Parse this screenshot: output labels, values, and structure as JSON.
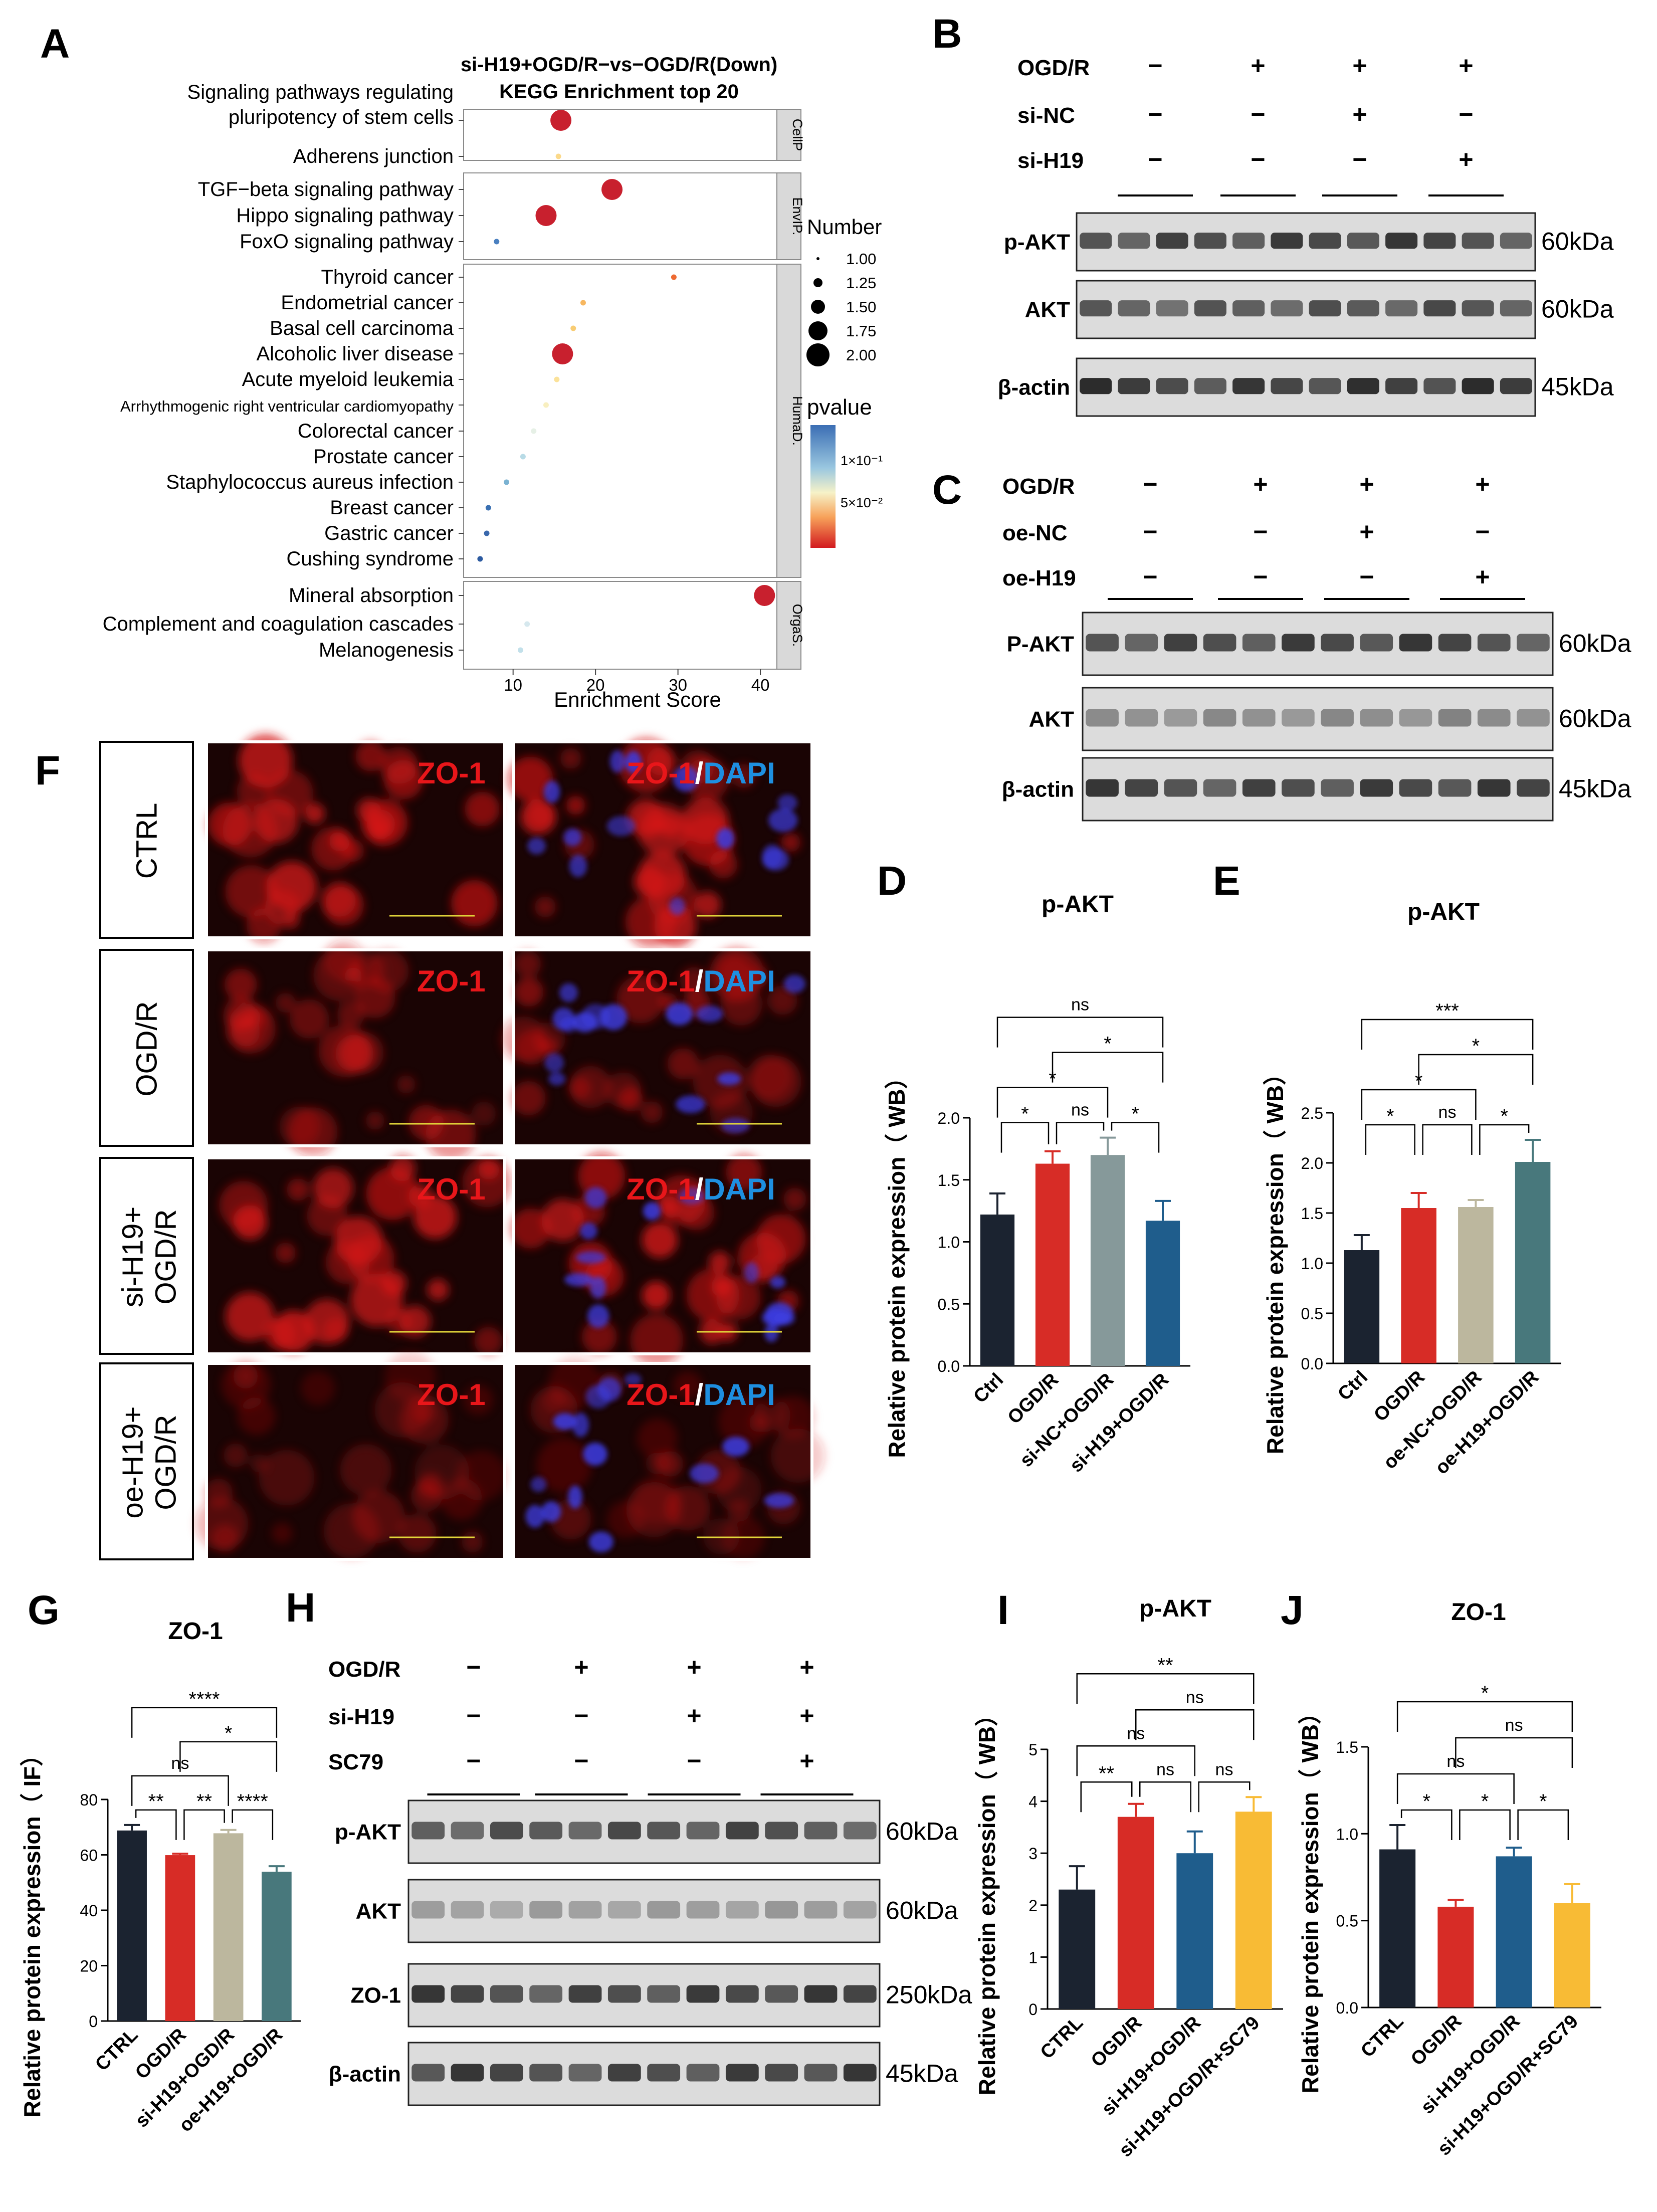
{
  "panel_letters": {
    "A": "A",
    "B": "B",
    "C": "C",
    "D": "D",
    "E": "E",
    "F": "F",
    "G": "G",
    "H": "H",
    "I": "I",
    "J": "J"
  },
  "kegg": {
    "title1": "si-H19+OGD/R−vs−OGD/R(Down)",
    "title2": "KEGG Enrichment top 20",
    "xlabel": "Enrichment Score",
    "xticks": [
      "10",
      "20",
      "30",
      "40"
    ],
    "groups": [
      {
        "name": "CellP",
        "terms": [
          "Signaling pathways regulating|pluripotency of stem cells",
          "Adherens junction"
        ]
      },
      {
        "name": "EnvIP.",
        "terms": [
          "TGF−beta signaling pathway",
          "Hippo signaling pathway",
          "FoxO signaling pathway"
        ]
      },
      {
        "name": "HumaD.",
        "terms": [
          "Thyroid cancer",
          "Endometrial cancer",
          "Basal cell carcinoma",
          "Alcoholic liver disease",
          "Acute myeloid leukemia",
          "Arrhythmogenic right ventricular cardiomyopathy",
          "Colorectal cancer",
          "Prostate cancer",
          "Staphylococcus aureus infection",
          "Breast cancer",
          "Gastric cancer",
          "Cushing syndrome"
        ]
      },
      {
        "name": "OrgaS.",
        "terms": [
          "Mineral absorption",
          "Complement and coagulation cascades",
          "Melanogenesis"
        ]
      }
    ],
    "legend_number_title": "Number",
    "legend_number": [
      "1.00",
      "1.25",
      "1.50",
      "1.75",
      "2.00"
    ],
    "legend_pvalue_title": "pvalue",
    "legend_pvalue_ticks": [
      "1×10⁻¹",
      "5×10⁻²"
    ]
  },
  "wb_B": {
    "conditions": [
      {
        "label": "OGD/R",
        "marks": [
          "−",
          "+",
          "+",
          "+"
        ]
      },
      {
        "label": "si-NC",
        "marks": [
          "−",
          "−",
          "+",
          "−"
        ]
      },
      {
        "label": "si-H19",
        "marks": [
          "−",
          "−",
          "−",
          "+"
        ]
      }
    ],
    "bands": [
      {
        "name": "p-AKT",
        "kda": "60kDa"
      },
      {
        "name": "AKT",
        "kda": "60kDa"
      },
      {
        "name": "β-actin",
        "kda": "45kDa"
      }
    ]
  },
  "wb_C": {
    "conditions": [
      {
        "label": "OGD/R",
        "marks": [
          "−",
          "+",
          "+",
          "+"
        ]
      },
      {
        "label": "oe-NC",
        "marks": [
          "−",
          "−",
          "+",
          "−"
        ]
      },
      {
        "label": "oe-H19",
        "marks": [
          "−",
          "−",
          "−",
          "+"
        ]
      }
    ],
    "bands": [
      {
        "name": "P-AKT",
        "kda": "60kDa"
      },
      {
        "name": "AKT",
        "kda": "60kDa"
      },
      {
        "name": "β-actin",
        "kda": "45kDa"
      }
    ]
  },
  "wb_H": {
    "conditions": [
      {
        "label": "OGD/R",
        "marks": [
          "−",
          "+",
          "+",
          "+"
        ]
      },
      {
        "label": "si-H19",
        "marks": [
          "−",
          "−",
          "+",
          "+"
        ]
      },
      {
        "label": "SC79",
        "marks": [
          "−",
          "−",
          "−",
          "+"
        ]
      }
    ],
    "bands": [
      {
        "name": "p-AKT",
        "kda": "60kDa"
      },
      {
        "name": "AKT",
        "kda": "60kDa"
      },
      {
        "name": "ZO-1",
        "kda": "250kDa"
      },
      {
        "name": "β-actin",
        "kda": "45kDa"
      }
    ]
  },
  "if_F": {
    "rows": [
      "CTRL",
      "OGD/R",
      "si-H19+|OGD/R",
      "oe-H19+|OGD/R"
    ],
    "label_zo1": "ZO-1",
    "label_slash": "/",
    "label_dapi": "DAPI"
  },
  "chart_data": [
    {
      "panel": "D",
      "type": "bar",
      "title": "p-AKT",
      "ylabel": "Relative protein expression（ WB）",
      "ylim": [
        0,
        2.0
      ],
      "yticks": [
        "0.0",
        "0.5",
        "1.0",
        "1.5",
        "2.0"
      ],
      "categories": [
        "Ctrl",
        "OGD/R",
        "si-NC+OGD/R",
        "si-H19+OGD/R"
      ],
      "values": [
        1.22,
        1.63,
        1.7,
        1.17
      ],
      "errors": [
        0.17,
        0.1,
        0.14,
        0.16
      ],
      "colors": [
        "#1b2330",
        "#d72c26",
        "#86999a",
        "#1f5d8c"
      ],
      "sig": [
        {
          "a": 0,
          "b": 1,
          "t": "*"
        },
        {
          "a": 1,
          "b": 2,
          "t": "ns"
        },
        {
          "a": 2,
          "b": 3,
          "t": "*"
        },
        {
          "a": 0,
          "b": 2,
          "t": "*"
        },
        {
          "a": 1,
          "b": 3,
          "t": "*"
        },
        {
          "a": 0,
          "b": 3,
          "t": "ns"
        }
      ]
    },
    {
      "panel": "E",
      "type": "bar",
      "title": "p-AKT",
      "ylabel": "Relative protein expression（ WB）",
      "ylim": [
        0,
        2.5
      ],
      "yticks": [
        "0.0",
        "0.5",
        "1.0",
        "1.5",
        "2.0",
        "2.5"
      ],
      "categories": [
        "Ctrl",
        "OGD/R",
        "oe-NC+OGD/R",
        "oe-H19+OGD/R"
      ],
      "values": [
        1.13,
        1.55,
        1.56,
        2.01
      ],
      "errors": [
        0.15,
        0.15,
        0.07,
        0.22
      ],
      "colors": [
        "#1b2330",
        "#d72c26",
        "#bcb79e",
        "#48787c"
      ],
      "sig": [
        {
          "a": 0,
          "b": 1,
          "t": "*"
        },
        {
          "a": 1,
          "b": 2,
          "t": "ns"
        },
        {
          "a": 2,
          "b": 3,
          "t": "*"
        },
        {
          "a": 0,
          "b": 2,
          "t": "*"
        },
        {
          "a": 1,
          "b": 3,
          "t": "*"
        },
        {
          "a": 0,
          "b": 3,
          "t": "***"
        }
      ]
    },
    {
      "panel": "G",
      "type": "bar",
      "title": "ZO-1",
      "ylabel": "Relative protein expression（ IF）",
      "ylim": [
        0,
        80
      ],
      "yticks": [
        "0",
        "20",
        "40",
        "60",
        "80"
      ],
      "categories": [
        "CTRL",
        "OGD/R",
        "si-H19+OGD/R",
        "oe-H19+OGD/R"
      ],
      "values": [
        68.8,
        59.9,
        67.8,
        53.9
      ],
      "errors": [
        2.0,
        0.5,
        1.2,
        2.0
      ],
      "colors": [
        "#1b2330",
        "#d72c26",
        "#bcb79e",
        "#48787c"
      ],
      "sig": [
        {
          "a": 0,
          "b": 1,
          "t": "**"
        },
        {
          "a": 1,
          "b": 2,
          "t": "**"
        },
        {
          "a": 2,
          "b": 3,
          "t": "****"
        },
        {
          "a": 0,
          "b": 2,
          "t": "ns"
        },
        {
          "a": 1,
          "b": 3,
          "t": "*"
        },
        {
          "a": 0,
          "b": 3,
          "t": "****"
        }
      ]
    },
    {
      "panel": "I",
      "type": "bar",
      "title": "p-AKT",
      "ylabel": "Relative protein expression（ WB）",
      "ylim": [
        0,
        5
      ],
      "yticks": [
        "0",
        "1",
        "2",
        "3",
        "4",
        "5"
      ],
      "categories": [
        "CTRL",
        "OGD/R",
        "si-H19+OGD/R",
        "si-H19+OGD/R+SC79"
      ],
      "values": [
        2.3,
        3.7,
        3.0,
        3.8
      ],
      "errors": [
        0.45,
        0.25,
        0.42,
        0.28
      ],
      "colors": [
        "#1b2330",
        "#d72c26",
        "#1f5d8c",
        "#f8bb35"
      ],
      "sig": [
        {
          "a": 0,
          "b": 1,
          "t": "**"
        },
        {
          "a": 1,
          "b": 2,
          "t": "ns"
        },
        {
          "a": 2,
          "b": 3,
          "t": "ns"
        },
        {
          "a": 0,
          "b": 2,
          "t": "ns"
        },
        {
          "a": 1,
          "b": 3,
          "t": "ns"
        },
        {
          "a": 0,
          "b": 3,
          "t": "**"
        }
      ]
    },
    {
      "panel": "J",
      "type": "bar",
      "title": "ZO-1",
      "ylabel": "Relative protein expression（ WB）",
      "ylim": [
        0,
        1.5
      ],
      "yticks": [
        "0.0",
        "0.5",
        "1.0",
        "1.5"
      ],
      "categories": [
        "CTRL",
        "OGD/R",
        "si-H19+OGD/R",
        "si-H19+OGD/R+SC79"
      ],
      "values": [
        0.91,
        0.58,
        0.87,
        0.6
      ],
      "errors": [
        0.14,
        0.04,
        0.05,
        0.11
      ],
      "colors": [
        "#1b2330",
        "#d72c26",
        "#1f5d8c",
        "#f8bb35"
      ],
      "sig": [
        {
          "a": 0,
          "b": 1,
          "t": "*"
        },
        {
          "a": 1,
          "b": 2,
          "t": "*"
        },
        {
          "a": 2,
          "b": 3,
          "t": "*"
        },
        {
          "a": 0,
          "b": 2,
          "t": "ns"
        },
        {
          "a": 1,
          "b": 3,
          "t": "ns"
        },
        {
          "a": 0,
          "b": 3,
          "t": "*"
        }
      ]
    },
    {
      "panel": "A",
      "type": "scatter",
      "title": "KEGG Enrichment top 20",
      "xlabel": "Enrichment Score",
      "xlim": [
        4,
        42
      ],
      "points": [
        {
          "term": "Signaling pathways regulating pluripotency of stem cells",
          "x": 15.8,
          "number": 2,
          "color": "#c8202e"
        },
        {
          "term": "Adherens junction",
          "x": 15.5,
          "number": 1,
          "color": "#fbd98a"
        },
        {
          "term": "TGF−beta signaling pathway",
          "x": 22.0,
          "number": 2,
          "color": "#c8202e"
        },
        {
          "term": "Hippo signaling pathway",
          "x": 14.0,
          "number": 2,
          "color": "#c8202e"
        },
        {
          "term": "FoxO signaling pathway",
          "x": 8.0,
          "number": 1,
          "color": "#4a80c0"
        },
        {
          "term": "Thyroid cancer",
          "x": 29.5,
          "number": 1,
          "color": "#ee6a32"
        },
        {
          "term": "Endometrial cancer",
          "x": 18.5,
          "number": 1,
          "color": "#f7b760"
        },
        {
          "term": "Basal cell carcinoma",
          "x": 17.3,
          "number": 1,
          "color": "#f8cc73"
        },
        {
          "term": "Alcoholic liver disease",
          "x": 16.0,
          "number": 2,
          "color": "#c8202e"
        },
        {
          "term": "Acute myeloid leukemia",
          "x": 15.3,
          "number": 1,
          "color": "#fbe29a"
        },
        {
          "term": "Arrhythmogenic right ventricular cardiomyopathy",
          "x": 14.0,
          "number": 1,
          "color": "#f8efc0"
        },
        {
          "term": "Colorectal cancer",
          "x": 12.5,
          "number": 1,
          "color": "#e6f0e6"
        },
        {
          "term": "Prostate cancer",
          "x": 11.2,
          "number": 1,
          "color": "#b8dbe6"
        },
        {
          "term": "Staphylococcus aureus infection",
          "x": 9.2,
          "number": 1,
          "color": "#7ab2d2"
        },
        {
          "term": "Breast cancer",
          "x": 7.0,
          "number": 1,
          "color": "#3a70b2"
        },
        {
          "term": "Gastric cancer",
          "x": 6.8,
          "number": 1,
          "color": "#3a68ac"
        },
        {
          "term": "Cushing syndrome",
          "x": 6.0,
          "number": 1,
          "color": "#2c5aa0"
        },
        {
          "term": "Mineral absorption",
          "x": 40.5,
          "number": 2,
          "color": "#c8202e"
        },
        {
          "term": "Complement and coagulation cascades",
          "x": 11.7,
          "number": 1,
          "color": "#d6e8ee"
        },
        {
          "term": "Melanogenesis",
          "x": 10.9,
          "number": 1,
          "color": "#c2e0ea"
        }
      ]
    }
  ]
}
